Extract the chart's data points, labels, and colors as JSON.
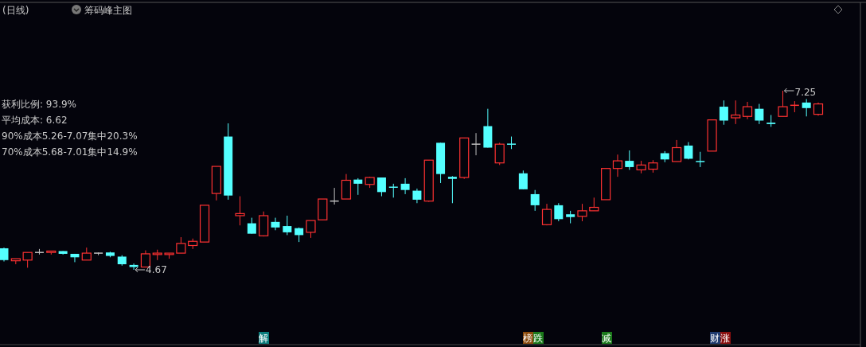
{
  "chart_data": {
    "type": "candlestick",
    "title": "(日线)",
    "subtitle": "筹码峰主图",
    "categories": [
      null,
      null,
      null,
      null,
      null,
      null,
      null,
      null,
      null,
      null,
      null,
      null,
      null,
      null,
      null,
      null,
      null,
      null,
      null,
      null,
      null,
      null,
      null,
      null,
      null,
      null,
      null,
      null,
      null,
      null,
      null,
      null,
      null,
      null,
      null,
      null,
      null,
      null,
      null,
      null,
      null,
      null,
      null,
      null,
      null,
      null,
      null,
      null,
      null,
      null,
      null,
      null,
      null,
      null,
      null,
      null,
      null,
      null,
      null,
      null,
      null,
      null,
      null,
      null,
      null,
      null,
      null,
      null,
      null,
      null
    ],
    "ohlc": [
      [
        4.98,
        4.99,
        4.79,
        4.81
      ],
      [
        4.8,
        4.83,
        4.75,
        4.83
      ],
      [
        4.81,
        4.92,
        4.7,
        4.92
      ],
      [
        4.92,
        4.97,
        4.89,
        4.92
      ],
      [
        4.92,
        4.94,
        4.89,
        4.94
      ],
      [
        4.94,
        4.94,
        4.89,
        4.9
      ],
      [
        4.9,
        4.9,
        4.78,
        4.85
      ],
      [
        4.81,
        4.99,
        4.81,
        4.91
      ],
      [
        4.91,
        4.92,
        4.88,
        4.91
      ],
      [
        4.92,
        4.93,
        4.85,
        4.87
      ],
      [
        4.86,
        4.88,
        4.73,
        4.75
      ],
      [
        4.74,
        4.76,
        4.67,
        4.71
      ],
      [
        4.71,
        4.95,
        4.71,
        4.9
      ],
      [
        4.89,
        4.96,
        4.81,
        4.91
      ],
      [
        4.89,
        4.91,
        4.83,
        4.91
      ],
      [
        4.91,
        5.14,
        4.91,
        5.05
      ],
      [
        5.02,
        5.12,
        4.97,
        5.08
      ],
      [
        5.07,
        5.6,
        5.07,
        5.6
      ],
      [
        5.77,
        6.16,
        5.67,
        6.16
      ],
      [
        6.59,
        6.78,
        5.68,
        5.74
      ],
      [
        5.45,
        5.73,
        5.31,
        5.48
      ],
      [
        5.34,
        5.42,
        5.19,
        5.19
      ],
      [
        5.16,
        5.51,
        5.15,
        5.45
      ],
      [
        5.36,
        5.42,
        5.24,
        5.28
      ],
      [
        5.3,
        5.45,
        5.17,
        5.21
      ],
      [
        5.27,
        5.28,
        5.07,
        5.17
      ],
      [
        5.21,
        5.38,
        5.13,
        5.38
      ],
      [
        5.39,
        5.69,
        5.39,
        5.69
      ],
      [
        5.66,
        5.85,
        5.61,
        5.66
      ],
      [
        5.69,
        6.05,
        5.69,
        5.96
      ],
      [
        5.97,
        5.99,
        5.75,
        5.91
      ],
      [
        5.9,
        6.01,
        5.85,
        6.0
      ],
      [
        6.0,
        6.0,
        5.73,
        5.79
      ],
      [
        5.86,
        5.91,
        5.71,
        5.86
      ],
      [
        5.91,
        5.99,
        5.76,
        5.82
      ],
      [
        5.81,
        5.84,
        5.63,
        5.68
      ],
      [
        5.66,
        6.25,
        5.65,
        6.25
      ],
      [
        6.5,
        6.5,
        5.92,
        6.05
      ],
      [
        6.01,
        6.02,
        5.63,
        5.98
      ],
      [
        6.0,
        6.57,
        5.98,
        6.57
      ],
      [
        6.48,
        6.64,
        6.32,
        6.48
      ],
      [
        6.74,
        6.99,
        6.43,
        6.43
      ],
      [
        6.21,
        6.5,
        6.18,
        6.48
      ],
      [
        6.48,
        6.59,
        6.41,
        6.48
      ],
      [
        6.06,
        6.1,
        5.83,
        5.83
      ],
      [
        5.76,
        5.82,
        5.52,
        5.6
      ],
      [
        5.32,
        5.62,
        5.31,
        5.54
      ],
      [
        5.6,
        5.63,
        5.37,
        5.4
      ],
      [
        5.47,
        5.52,
        5.34,
        5.43
      ],
      [
        5.44,
        5.62,
        5.37,
        5.52
      ],
      [
        5.52,
        5.71,
        5.52,
        5.57
      ],
      [
        5.68,
        6.13,
        5.68,
        6.13
      ],
      [
        6.13,
        6.33,
        6.01,
        6.24
      ],
      [
        6.24,
        6.39,
        6.11,
        6.15
      ],
      [
        6.11,
        6.24,
        6.06,
        6.18
      ],
      [
        6.12,
        6.25,
        6.07,
        6.21
      ],
      [
        6.35,
        6.38,
        6.22,
        6.26
      ],
      [
        6.23,
        6.54,
        6.23,
        6.43
      ],
      [
        6.46,
        6.51,
        6.26,
        6.27
      ],
      [
        6.23,
        6.37,
        6.15,
        6.23
      ],
      [
        6.38,
        6.83,
        6.38,
        6.83
      ],
      [
        7.02,
        7.11,
        6.76,
        6.82
      ],
      [
        6.86,
        7.11,
        6.77,
        6.9
      ],
      [
        6.88,
        7.09,
        6.84,
        7.02
      ],
      [
        6.99,
        7.06,
        6.77,
        6.82
      ],
      [
        6.79,
        6.9,
        6.73,
        6.77
      ],
      [
        6.88,
        7.25,
        6.88,
        7.02
      ],
      [
        7.04,
        7.1,
        6.94,
        7.04
      ],
      [
        7.08,
        7.13,
        6.88,
        7.0
      ],
      [
        6.91,
        7.08,
        6.89,
        7.06
      ]
    ],
    "colors": [
      "#54ffff",
      "#ff3232",
      "#ff3232",
      "#c0c0c0",
      "#ff3232",
      "#54ffff",
      "#54ffff",
      "#ff3232",
      "#c0c0c0",
      "#54ffff",
      "#54ffff",
      "#54ffff",
      "#ff3232",
      "#ff3232",
      "#ff3232",
      "#ff3232",
      "#ff3232",
      "#ff3232",
      "#ff3232",
      "#54ffff",
      "#ff3232",
      "#54ffff",
      "#ff3232",
      "#54ffff",
      "#54ffff",
      "#54ffff",
      "#ff3232",
      "#ff3232",
      "#c0c0c0",
      "#ff3232",
      "#54ffff",
      "#ff3232",
      "#54ffff",
      "#54ffff",
      "#54ffff",
      "#54ffff",
      "#ff3232",
      "#54ffff",
      "#54ffff",
      "#ff3232",
      "#c0c0c0",
      "#54ffff",
      "#ff3232",
      "#54ffff",
      "#54ffff",
      "#54ffff",
      "#ff3232",
      "#54ffff",
      "#54ffff",
      "#ff3232",
      "#ff3232",
      "#ff3232",
      "#ff3232",
      "#54ffff",
      "#ff3232",
      "#ff3232",
      "#54ffff",
      "#ff3232",
      "#54ffff",
      "#54ffff",
      "#ff3232",
      "#54ffff",
      "#ff3232",
      "#ff3232",
      "#54ffff",
      "#54ffff",
      "#ff3232",
      "#ff3232",
      "#54ffff",
      "#ff3232"
    ],
    "annotations": [
      "获利比例: 93.9%",
      "平均成本: 6.62",
      "90%成本5.26-7.07集中20.3%",
      "70%成本5.68-7.01集中14.9%",
      "4.67",
      "7.25",
      "解",
      "榜跌",
      "减",
      "财涨"
    ]
  }
}
